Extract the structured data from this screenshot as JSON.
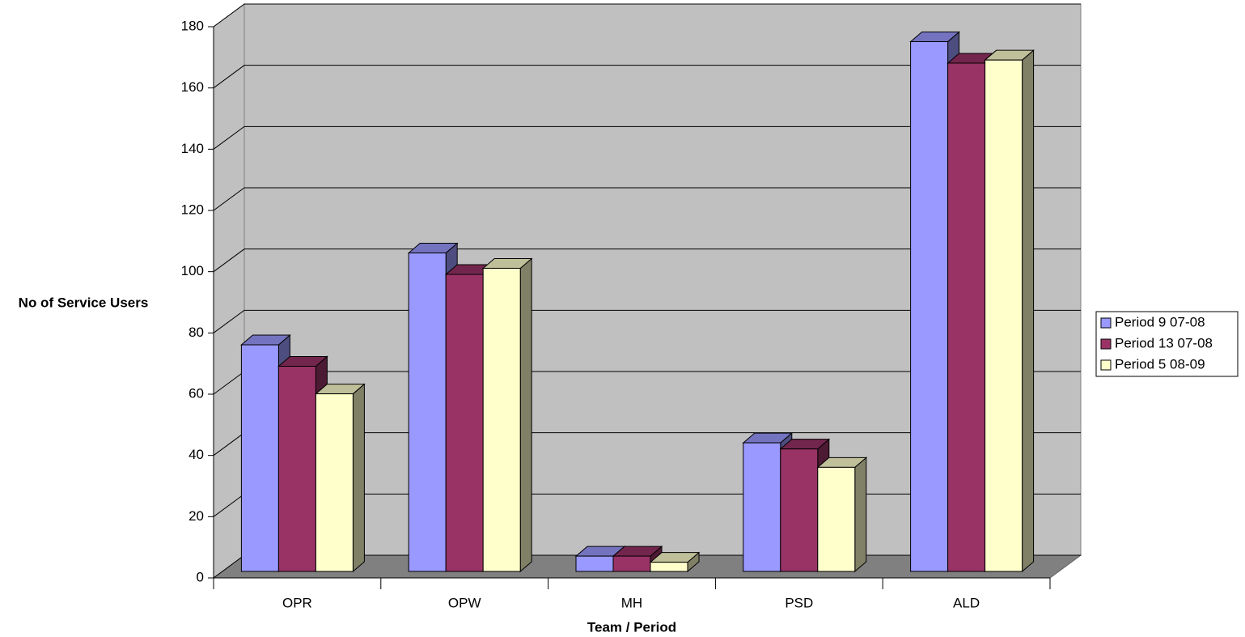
{
  "chart_data": {
    "type": "bar3d",
    "x_label": "Team / Period",
    "y_label": "No of Service Users",
    "categories": [
      "OPR",
      "OPW",
      "MH",
      "PSD",
      "ALD"
    ],
    "series": [
      {
        "name": "Period 9 07-08",
        "color": "#9999ff",
        "values": [
          74,
          104,
          5,
          42,
          173
        ]
      },
      {
        "name": "Period 13 07-08",
        "color": "#993366",
        "values": [
          67,
          97,
          5,
          40,
          166
        ]
      },
      {
        "name": "Period 5 08-09",
        "color": "#ffffcc",
        "values": [
          58,
          99,
          3,
          34,
          167
        ]
      }
    ],
    "ylim": [
      0,
      180
    ],
    "yticks": [
      0,
      20,
      40,
      60,
      80,
      100,
      120,
      140,
      160,
      180
    ],
    "grid": true,
    "legend": "right"
  }
}
